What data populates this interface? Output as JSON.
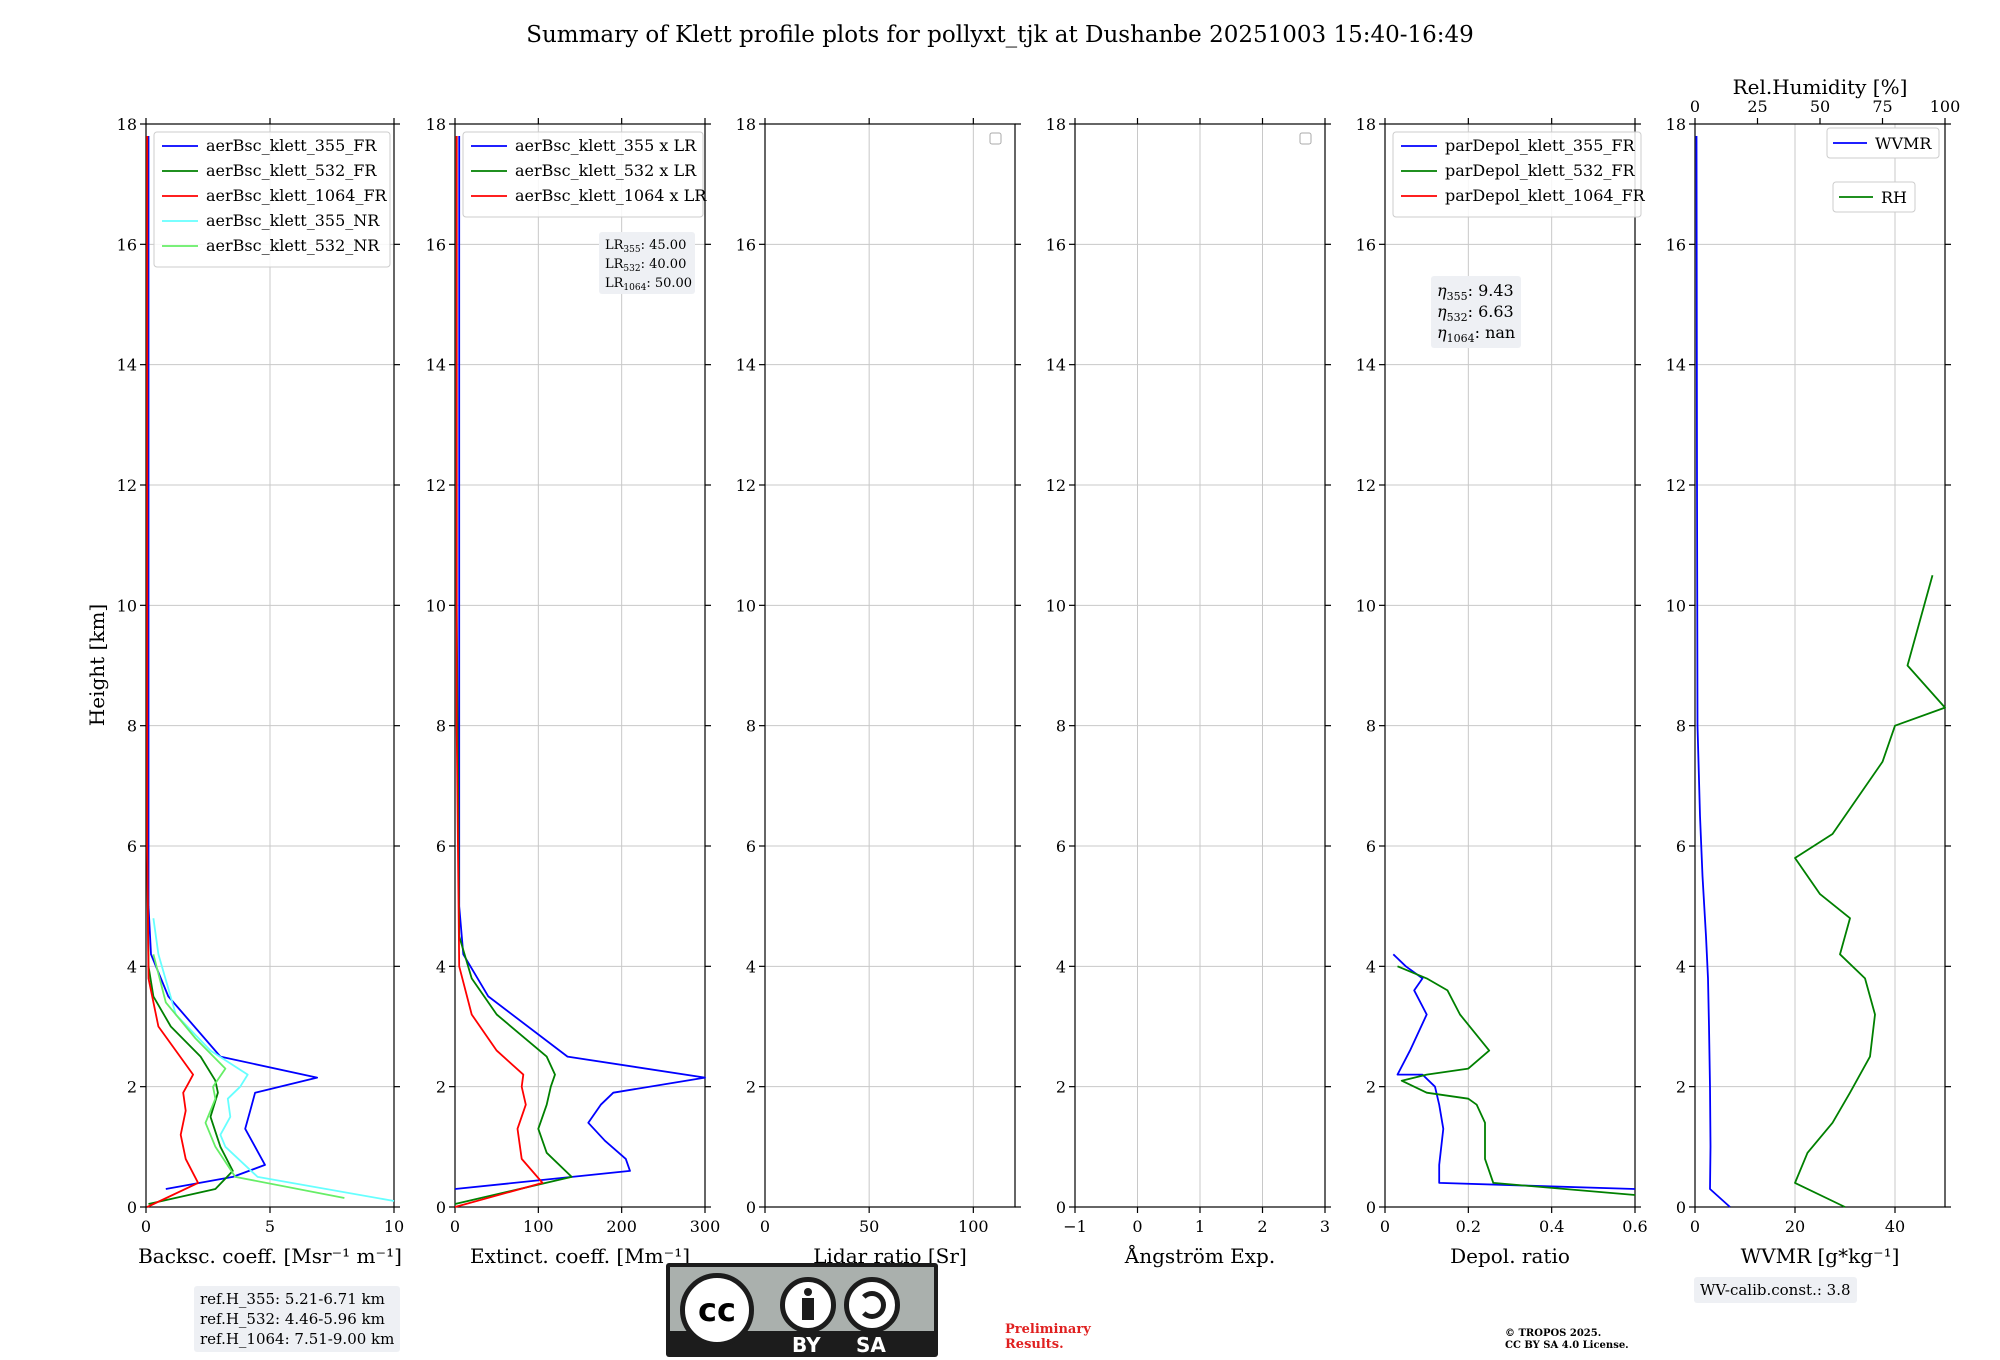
{
  "figure_title": "Summary of Klett profile plots for pollyxt_tjk at Dushanbe 20251003 15:40-16:49",
  "y_label": "Height [km]",
  "ref_heights": [
    "ref.H_355: 5.21-6.71 km",
    "ref.H_532: 4.46-5.96 km",
    "ref.H_1064: 7.51-9.00 km"
  ],
  "wv_calib": "WV-calib.const.: 3.8",
  "license_badge": {
    "by": "BY",
    "sa": "SA"
  },
  "preliminary": [
    "Preliminary",
    "Results."
  ],
  "copyright": [
    "© TROPOS 2025.",
    "CC BY SA 4.0 License."
  ],
  "colors": {
    "c355": "#0000ff",
    "c532": "#008000",
    "c1064": "#ff0000",
    "c355nr": "#66ffff",
    "c532nr": "#66ee66"
  },
  "chart_data": [
    {
      "type": "line",
      "xlabel": "Backsc. coeff. [Msr⁻¹ m⁻¹]",
      "xlim": [
        0,
        10
      ],
      "ylim": [
        0,
        18
      ],
      "xticks": [
        0,
        5,
        10
      ],
      "yticks": [
        0,
        2,
        4,
        6,
        8,
        10,
        12,
        14,
        16,
        18
      ],
      "legend": "top-left",
      "series": [
        {
          "name": "aerBsc_klett_355_FR",
          "color": "#0000ff",
          "x": [
            0.8,
            3.5,
            4.8,
            4.4,
            4.0,
            4.2,
            4.4,
            6.9,
            3.0,
            0.9,
            0.2,
            0.1,
            0.1,
            0.1,
            0.1,
            0.1,
            0.1
          ],
          "y": [
            0.3,
            0.5,
            0.7,
            1.0,
            1.3,
            1.6,
            1.9,
            2.15,
            2.5,
            3.5,
            4.2,
            5,
            8,
            11,
            14,
            16,
            17.8
          ]
        },
        {
          "name": "aerBsc_klett_532_FR",
          "color": "#008000",
          "x": [
            0.1,
            2.8,
            3.5,
            3.0,
            2.6,
            2.9,
            2.8,
            2.2,
            1.0,
            0.3,
            0.1,
            0.05,
            0.05,
            0.05
          ],
          "y": [
            0.05,
            0.3,
            0.6,
            1.0,
            1.5,
            1.9,
            2.1,
            2.5,
            3.0,
            3.5,
            4.0,
            6,
            12,
            17.8
          ]
        },
        {
          "name": "aerBsc_klett_1064_FR",
          "color": "#ff0000",
          "x": [
            0.05,
            2.1,
            1.6,
            1.4,
            1.6,
            1.5,
            1.7,
            1.9,
            1.2,
            0.5,
            0.1,
            0.05,
            0.05
          ],
          "y": [
            0.0,
            0.4,
            0.8,
            1.2,
            1.6,
            1.9,
            2.05,
            2.2,
            2.6,
            3.0,
            3.8,
            6,
            17.8
          ]
        },
        {
          "name": "aerBsc_klett_355_NR",
          "color": "#66ffff",
          "x": [
            10.0,
            4.5,
            3.2,
            3.0,
            3.4,
            3.3,
            3.8,
            4.1,
            2.6,
            1.2,
            0.5,
            0.3
          ],
          "y": [
            0.1,
            0.5,
            1.0,
            1.2,
            1.5,
            1.8,
            2.0,
            2.2,
            2.6,
            3.2,
            4.2,
            4.8
          ]
        },
        {
          "name": "aerBsc_klett_532_NR",
          "color": "#66ee66",
          "x": [
            8.0,
            3.6,
            2.8,
            2.4,
            2.8,
            2.7,
            3.2,
            2.0,
            0.8,
            0.3
          ],
          "y": [
            0.15,
            0.5,
            1.0,
            1.4,
            1.8,
            2.0,
            2.3,
            2.8,
            3.4,
            4.2
          ]
        }
      ]
    },
    {
      "type": "line",
      "xlabel": "Extinct. coeff. [Mm⁻¹]",
      "xlim": [
        0,
        300
      ],
      "ylim": [
        0,
        18
      ],
      "xticks": [
        0,
        100,
        200,
        300
      ],
      "yticks": [
        0,
        2,
        4,
        6,
        8,
        10,
        12,
        14,
        16,
        18
      ],
      "legend": "top-left",
      "lr_labels": {
        "lr355": "45.00",
        "lr532": "40.00",
        "lr1064": "50.00"
      },
      "series": [
        {
          "name": "aerBsc_klett_355 x LR",
          "color": "#0000ff",
          "x": [
            0,
            210,
            205,
            180,
            160,
            175,
            190,
            300,
            135,
            40,
            10,
            5,
            5,
            5,
            5,
            5
          ],
          "y": [
            0.3,
            0.6,
            0.8,
            1.1,
            1.4,
            1.7,
            1.9,
            2.15,
            2.5,
            3.5,
            4.2,
            5,
            8,
            12,
            16,
            17.8
          ]
        },
        {
          "name": "aerBsc_klett_532 x LR",
          "color": "#008000",
          "x": [
            0,
            140,
            110,
            100,
            110,
            115,
            120,
            110,
            50,
            20,
            5,
            2,
            2
          ],
          "y": [
            0.05,
            0.5,
            0.9,
            1.3,
            1.7,
            2.0,
            2.2,
            2.5,
            3.2,
            3.8,
            4.5,
            10,
            17.8
          ]
        },
        {
          "name": "aerBsc_klett_1064 x LR",
          "color": "#ff0000",
          "x": [
            0,
            105,
            80,
            75,
            85,
            80,
            82,
            50,
            20,
            5,
            2,
            2
          ],
          "y": [
            0.0,
            0.4,
            0.8,
            1.3,
            1.7,
            2.0,
            2.2,
            2.6,
            3.2,
            4.0,
            8,
            17.8
          ]
        }
      ]
    },
    {
      "type": "line",
      "xlabel": "Lidar ratio [Sr]",
      "xlim": [
        0,
        120
      ],
      "ylim": [
        0,
        18
      ],
      "xticks": [
        0,
        50,
        100
      ],
      "yticks": [
        0,
        2,
        4,
        6,
        8,
        10,
        12,
        14,
        16,
        18
      ],
      "series": []
    },
    {
      "type": "line",
      "xlabel": "Ångström Exp.",
      "xlim": [
        -1,
        3
      ],
      "ylim": [
        0,
        18
      ],
      "xticks": [
        -1,
        0,
        1,
        2,
        3
      ],
      "yticks": [
        0,
        2,
        4,
        6,
        8,
        10,
        12,
        14,
        16,
        18
      ],
      "series": []
    },
    {
      "type": "line",
      "xlabel": "Depol. ratio",
      "xlim": [
        0,
        0.6
      ],
      "ylim": [
        0,
        18
      ],
      "xticks": [
        0,
        0.2,
        0.4,
        0.6
      ],
      "yticks": [
        0,
        2,
        4,
        6,
        8,
        10,
        12,
        14,
        16,
        18
      ],
      "legend": "top-left",
      "eta_labels": {
        "eta355": "9.43",
        "eta532": "6.63",
        "eta1064": "nan"
      },
      "series": [
        {
          "name": "parDepol_klett_355_FR",
          "color": "#0000ff",
          "x": [
            0.6,
            0.13,
            0.13,
            0.14,
            0.13,
            0.12,
            0.09,
            0.03,
            0.06,
            0.1,
            0.07,
            0.09,
            0.05,
            0.02
          ],
          "y": [
            0.3,
            0.4,
            0.7,
            1.3,
            1.7,
            2.0,
            2.2,
            2.2,
            2.6,
            3.2,
            3.6,
            3.8,
            4.0,
            4.2
          ]
        },
        {
          "name": "parDepol_klett_532_FR",
          "color": "#008000",
          "x": [
            0.6,
            0.26,
            0.24,
            0.24,
            0.22,
            0.2,
            0.1,
            0.04,
            0.1,
            0.2,
            0.25,
            0.18,
            0.15,
            0.1,
            0.03
          ],
          "y": [
            0.2,
            0.4,
            0.8,
            1.4,
            1.7,
            1.8,
            1.9,
            2.1,
            2.2,
            2.3,
            2.6,
            3.2,
            3.6,
            3.8,
            4.0
          ]
        },
        {
          "name": "parDepol_klett_1064_FR",
          "color": "#ff0000",
          "x": [],
          "y": []
        }
      ]
    },
    {
      "type": "line",
      "xlabel": "WVMR [g*kg⁻¹]",
      "x2label": "Rel.Humidity [%]",
      "xlim": [
        0,
        50
      ],
      "x2lim": [
        0,
        100
      ],
      "ylim": [
        0,
        18
      ],
      "xticks": [
        0,
        20,
        40
      ],
      "x2ticks": [
        0,
        25,
        50,
        75,
        100
      ],
      "yticks": [
        0,
        2,
        4,
        6,
        8,
        10,
        12,
        14,
        16,
        18
      ],
      "series": [
        {
          "name": "WVMR",
          "color": "#0000ff",
          "axis": "bottom",
          "x": [
            7,
            3,
            3.1,
            3.0,
            2.8,
            2.6,
            2.2,
            1.5,
            1.0,
            0.5,
            0.4,
            0.3
          ],
          "y": [
            0.0,
            0.3,
            1.0,
            2.0,
            3.0,
            3.8,
            4.5,
            5.5,
            6.5,
            8,
            12,
            17.8
          ]
        },
        {
          "name": "RH",
          "color": "#008000",
          "axis": "top",
          "x": [
            60,
            40,
            45,
            55,
            62,
            70,
            72,
            68,
            58,
            62,
            50,
            40,
            55,
            65,
            75,
            80,
            100,
            85,
            95
          ],
          "y": [
            0.0,
            0.4,
            0.9,
            1.4,
            1.9,
            2.5,
            3.2,
            3.8,
            4.2,
            4.8,
            5.2,
            5.8,
            6.2,
            6.8,
            7.4,
            8.0,
            8.3,
            9.0,
            10.5
          ]
        }
      ]
    }
  ]
}
